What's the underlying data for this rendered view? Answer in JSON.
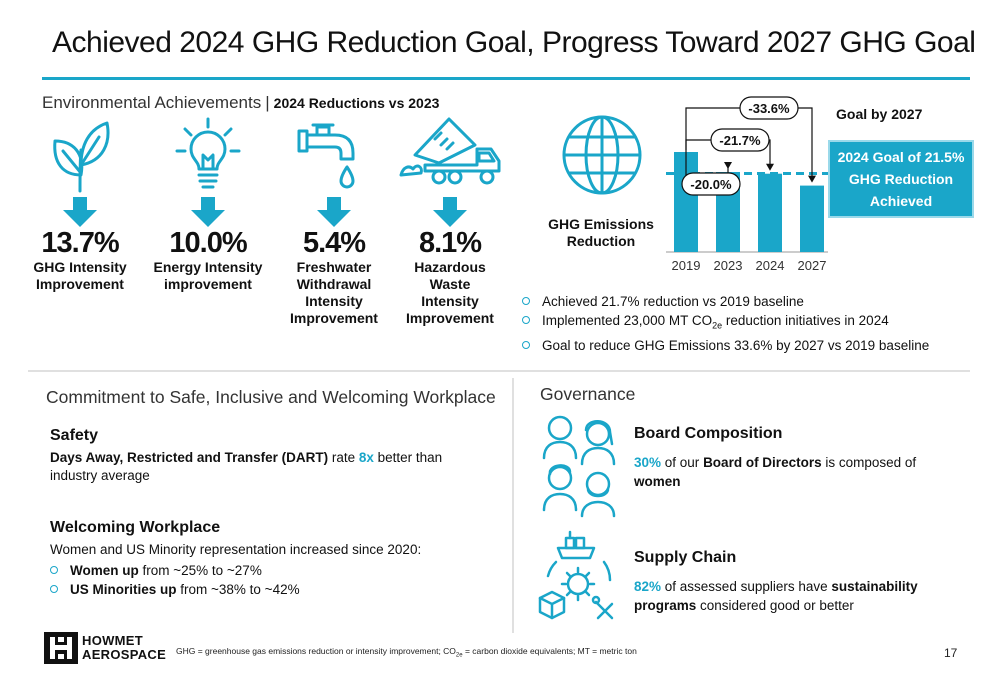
{
  "title": "Achieved 2024 GHG Reduction Goal, Progress Toward 2027 GHG Goal",
  "environmental": {
    "heading": "Environmental Achievements",
    "separator": "|",
    "subheading": "2024 Reductions vs 2023",
    "items": [
      {
        "icon": "leaf-icon",
        "value": "13.7%",
        "label_lines": [
          "GHG Intensity",
          "Improvement"
        ]
      },
      {
        "icon": "lightbulb-icon",
        "value": "10.0%",
        "label_lines": [
          "Energy Intensity",
          "improvement"
        ]
      },
      {
        "icon": "faucet-icon",
        "value": "5.4%",
        "label_lines": [
          "Freshwater",
          "Withdrawal",
          "Intensity",
          "Improvement"
        ]
      },
      {
        "icon": "dump-truck-icon",
        "value": "8.1%",
        "label_lines": [
          "Hazardous",
          "Waste",
          "Intensity",
          "Improvement"
        ]
      }
    ]
  },
  "ghg": {
    "label_lines": [
      "GHG Emissions",
      "Reduction"
    ],
    "goal_label": "Goal by 2027",
    "goal_box_lines": [
      "2024 Goal of 21.5%",
      "GHG Reduction",
      "Achieved"
    ],
    "bullets": [
      {
        "text": "Achieved 21.7% reduction vs 2019 baseline"
      },
      {
        "pre": "Implemented 23,000 MT CO",
        "sub": "2e",
        "post": " reduction initiatives in 2024"
      },
      {
        "text": "Goal to reduce GHG Emissions 33.6% by 2027 vs 2019 baseline"
      }
    ]
  },
  "chart_data": {
    "type": "bar",
    "categories": [
      "2019",
      "2023",
      "2024",
      "2027"
    ],
    "values": [
      100,
      80.0,
      78.3,
      66.4
    ],
    "callouts": [
      "-20.0%",
      "-21.7%",
      "-33.6%"
    ],
    "goal_line": 78.5,
    "title": "",
    "xlabel": "",
    "ylabel": "",
    "ylim": [
      0,
      160
    ],
    "bar_color": "#1aa6c9"
  },
  "workplace": {
    "heading": "Commitment to Safe, Inclusive and Welcoming Workplace",
    "safety_title": "Safety",
    "safety_bold": "Days Away, Restricted and Transfer (DART)",
    "safety_mid": " rate ",
    "safety_accent": "8x",
    "safety_end": " better than industry average",
    "welcoming_title": "Welcoming Workplace",
    "welcoming_text": "Women and US Minority representation increased since 2020:",
    "welcoming_items": [
      {
        "bold": "Women up",
        "rest": " from ~25% to ~27%"
      },
      {
        "bold": "US Minorities up",
        "rest": " from ~38% to ~42%"
      }
    ]
  },
  "governance": {
    "heading": "Governance",
    "board_title": "Board Composition",
    "board_accent": "30%",
    "board_mid": " of our ",
    "board_bold": "Board of Directors",
    "board_rest": " is composed of ",
    "board_end": "women",
    "supply_title": "Supply Chain",
    "supply_accent": "82%",
    "supply_mid": " of assessed suppliers have ",
    "supply_bold": "sustainability programs",
    "supply_end": " considered good or better"
  },
  "footer": {
    "logo_line1": "HOWMET",
    "logo_line2": "AEROSPACE",
    "foot_a": "GHG = greenhouse gas emissions reduction or intensity improvement;  CO",
    "foot_sub": "2e",
    "foot_b": " = carbon dioxide equivalents;  MT = metric ton",
    "page": "17"
  },
  "colors": {
    "accent": "#1aa6c9",
    "accent_light": "#9ad9ea"
  }
}
